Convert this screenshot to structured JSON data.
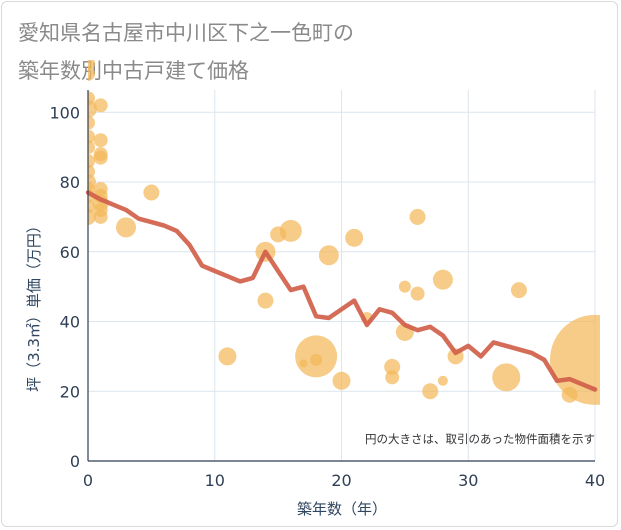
{
  "title_line1": "愛知県名古屋市中川区下之一色町の",
  "title_line2": "築年数別中古戸建て価格",
  "chart_data": {
    "type": "scatter",
    "xlabel": "築年数（年）",
    "ylabel": "坪（3.3㎡）単価（万円）",
    "xlim": [
      0,
      40
    ],
    "ylim": [
      0,
      115
    ],
    "xticks": [
      0,
      10,
      20,
      30,
      40
    ],
    "yticks": [
      0,
      20,
      40,
      60,
      80,
      100
    ],
    "grid": true,
    "note": "円の大きさは、取引のあった物件面積を示す",
    "colors": {
      "bubble": "#f3b85a",
      "line": "#d0604a",
      "grid": "#dce6ee",
      "text": "#2f3f55"
    },
    "points": [
      {
        "x": 0,
        "y": 114,
        "s": 7
      },
      {
        "x": 0,
        "y": 111,
        "s": 7
      },
      {
        "x": 0,
        "y": 104,
        "s": 7
      },
      {
        "x": 0,
        "y": 101,
        "s": 9
      },
      {
        "x": 0,
        "y": 97,
        "s": 7
      },
      {
        "x": 0,
        "y": 93,
        "s": 7
      },
      {
        "x": 0,
        "y": 90,
        "s": 7
      },
      {
        "x": 0,
        "y": 86,
        "s": 7
      },
      {
        "x": 0,
        "y": 83,
        "s": 7
      },
      {
        "x": 0,
        "y": 80,
        "s": 8
      },
      {
        "x": 0,
        "y": 78,
        "s": 7
      },
      {
        "x": 0,
        "y": 76,
        "s": 7
      },
      {
        "x": 0,
        "y": 73,
        "s": 7
      },
      {
        "x": 0,
        "y": 70,
        "s": 8
      },
      {
        "x": 1,
        "y": 102,
        "s": 7
      },
      {
        "x": 1,
        "y": 92,
        "s": 7
      },
      {
        "x": 1,
        "y": 88,
        "s": 7
      },
      {
        "x": 1,
        "y": 87,
        "s": 7
      },
      {
        "x": 1,
        "y": 78,
        "s": 7
      },
      {
        "x": 1,
        "y": 76,
        "s": 7
      },
      {
        "x": 1,
        "y": 74,
        "s": 8
      },
      {
        "x": 1,
        "y": 72,
        "s": 7
      },
      {
        "x": 1,
        "y": 70,
        "s": 7
      },
      {
        "x": 3,
        "y": 67,
        "s": 10
      },
      {
        "x": 5,
        "y": 77,
        "s": 8
      },
      {
        "x": 11,
        "y": 30,
        "s": 9
      },
      {
        "x": 14,
        "y": 60,
        "s": 10
      },
      {
        "x": 14,
        "y": 46,
        "s": 8
      },
      {
        "x": 15,
        "y": 65,
        "s": 8
      },
      {
        "x": 16,
        "y": 66,
        "s": 11
      },
      {
        "x": 17,
        "y": 28,
        "s": 4
      },
      {
        "x": 18,
        "y": 30,
        "s": 21
      },
      {
        "x": 18,
        "y": 29,
        "s": 6
      },
      {
        "x": 19,
        "y": 59,
        "s": 10
      },
      {
        "x": 20,
        "y": 23,
        "s": 9
      },
      {
        "x": 21,
        "y": 64,
        "s": 9
      },
      {
        "x": 22,
        "y": 41,
        "s": 6
      },
      {
        "x": 24,
        "y": 27,
        "s": 8
      },
      {
        "x": 24,
        "y": 24,
        "s": 7
      },
      {
        "x": 25,
        "y": 50,
        "s": 6
      },
      {
        "x": 25,
        "y": 37,
        "s": 9
      },
      {
        "x": 26,
        "y": 70,
        "s": 8
      },
      {
        "x": 26,
        "y": 48,
        "s": 7
      },
      {
        "x": 27,
        "y": 20,
        "s": 8
      },
      {
        "x": 28,
        "y": 52,
        "s": 10
      },
      {
        "x": 28,
        "y": 23,
        "s": 5
      },
      {
        "x": 29,
        "y": 30,
        "s": 8
      },
      {
        "x": 33,
        "y": 24,
        "s": 14
      },
      {
        "x": 34,
        "y": 49,
        "s": 8
      },
      {
        "x": 38,
        "y": 19,
        "s": 8
      },
      {
        "x": 40,
        "y": 29,
        "s": 45
      }
    ],
    "trend": [
      {
        "x": 0,
        "y": 77
      },
      {
        "x": 1,
        "y": 75
      },
      {
        "x": 2,
        "y": 73.5
      },
      {
        "x": 3,
        "y": 72
      },
      {
        "x": 4,
        "y": 69.5
      },
      {
        "x": 5,
        "y": 68.5
      },
      {
        "x": 6,
        "y": 67.5
      },
      {
        "x": 7,
        "y": 66
      },
      {
        "x": 8,
        "y": 62
      },
      {
        "x": 9,
        "y": 56
      },
      {
        "x": 10,
        "y": 54.5
      },
      {
        "x": 11,
        "y": 53
      },
      {
        "x": 12,
        "y": 51.5
      },
      {
        "x": 13,
        "y": 52.5
      },
      {
        "x": 14,
        "y": 60
      },
      {
        "x": 15,
        "y": 54.5
      },
      {
        "x": 16,
        "y": 49
      },
      {
        "x": 17,
        "y": 50
      },
      {
        "x": 18,
        "y": 41.5
      },
      {
        "x": 19,
        "y": 41
      },
      {
        "x": 20,
        "y": 43.5
      },
      {
        "x": 21,
        "y": 46
      },
      {
        "x": 22,
        "y": 39
      },
      {
        "x": 23,
        "y": 43.5
      },
      {
        "x": 24,
        "y": 42.5
      },
      {
        "x": 25,
        "y": 39
      },
      {
        "x": 26,
        "y": 37.5
      },
      {
        "x": 27,
        "y": 38.5
      },
      {
        "x": 28,
        "y": 36
      },
      {
        "x": 29,
        "y": 31
      },
      {
        "x": 30,
        "y": 33
      },
      {
        "x": 31,
        "y": 30
      },
      {
        "x": 32,
        "y": 34
      },
      {
        "x": 33,
        "y": 33
      },
      {
        "x": 34,
        "y": 32
      },
      {
        "x": 35,
        "y": 31
      },
      {
        "x": 36,
        "y": 29
      },
      {
        "x": 37,
        "y": 23
      },
      {
        "x": 38,
        "y": 23.5
      },
      {
        "x": 39,
        "y": 22
      },
      {
        "x": 40,
        "y": 20.5
      }
    ]
  }
}
